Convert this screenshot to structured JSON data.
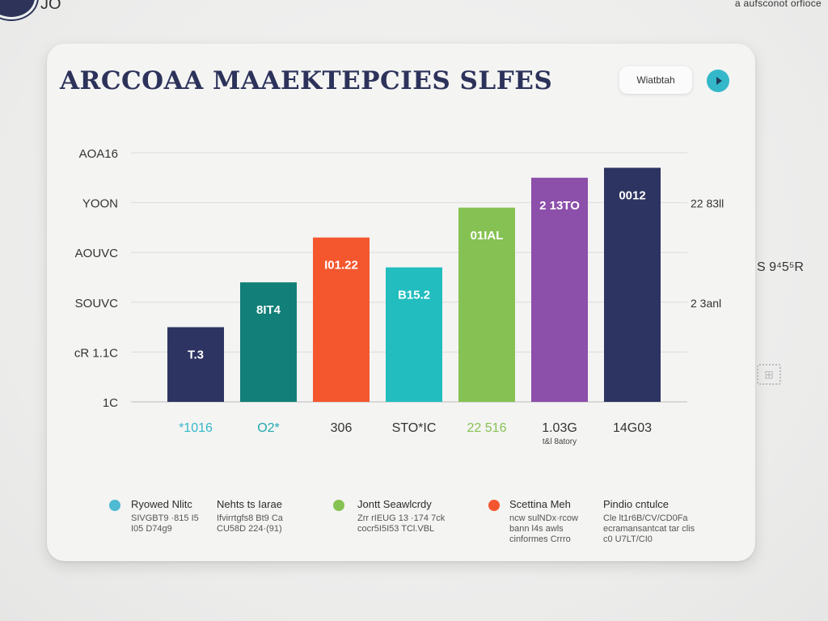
{
  "header": {
    "corner_text": "JO",
    "top_right": "a aufsconot orfioce"
  },
  "card": {
    "title": "ARCCOAA MAAEKTEPCIES SLFES",
    "pill_label": "Wiatbtah",
    "outer_right_label": "S 9⁴5⁵R",
    "colors": {
      "navy": "#2e3461",
      "teal_dark": "#127f78",
      "orange": "#f4572e",
      "cyan": "#22bdbf",
      "green": "#86c253",
      "purple": "#8c4faa",
      "accent_cyan": "#34b8c9"
    }
  },
  "chart_data": {
    "type": "bar",
    "title": "ARCCOAA MAAEKTEPCIES SLFES",
    "ylim": [
      1,
      6
    ],
    "y_ticks": [
      {
        "value": 1,
        "label": "1C"
      },
      {
        "value": 2,
        "label": "cR 1.1C"
      },
      {
        "value": 3,
        "label": "SOUVC"
      },
      {
        "value": 4,
        "label": "AOUVC"
      },
      {
        "value": 5,
        "label": "YOON"
      },
      {
        "value": 6,
        "label": "AOA16"
      }
    ],
    "right_labels": [
      {
        "value": 5,
        "label": "22 83ll"
      },
      {
        "value": 3,
        "label": "2 3anl"
      }
    ],
    "categories": [
      "*1016",
      "O2*",
      "306",
      "STO*IC",
      "22 516",
      "1.03G",
      "14G03"
    ],
    "category_colors": [
      "#34b8c9",
      "#22a8b0",
      "#333333",
      "#333333",
      "#86c253",
      "#333333",
      "#333333"
    ],
    "category_sublabels": [
      "",
      "",
      "",
      "",
      "",
      "t&l 8atory",
      ""
    ],
    "values": [
      2.5,
      3.4,
      4.3,
      3.7,
      4.9,
      5.5,
      5.7
    ],
    "data_labels": [
      "T.3",
      "8IT4",
      "I01.22",
      "B15.2",
      "01IAL",
      "2 13TO",
      "0012"
    ],
    "bar_colors": [
      "#2e3461",
      "#127f78",
      "#f4572e",
      "#22bdbf",
      "#86c253",
      "#8c4faa",
      "#2e3461"
    ],
    "legend_position": "bottom",
    "grid": true
  },
  "legend": [
    {
      "color": "#4fbad2",
      "title": "Ryowed Nlitc",
      "lines": [
        "SIVGBT9 ·815 I5",
        "I05 D74g9"
      ]
    },
    {
      "color": "",
      "title": "Nehts ts Iarae",
      "lines": [
        "Ifvirrtgfs8 Bt9 Ca",
        "CU58D 224·(91)"
      ]
    },
    {
      "color": "#86c253",
      "title": "Jontt Seawlcrdy",
      "lines": [
        "Zrr rIEUG 13 ·174 7ck",
        "cocr5I5I53  TCl.VBL"
      ]
    },
    {
      "color": "#f4572e",
      "title": "Scettina Meh",
      "lines": [
        "ncw sulNDx·rcow",
        "bann  l4s awls",
        "cinformes Crrro"
      ]
    },
    {
      "color": "",
      "title": "Pindio cntulce",
      "lines": [
        "Cle lt1r6B/CV/CD0Fa",
        "ecramansantcat tar clis",
        "c0 U7LT/CI0"
      ]
    }
  ]
}
